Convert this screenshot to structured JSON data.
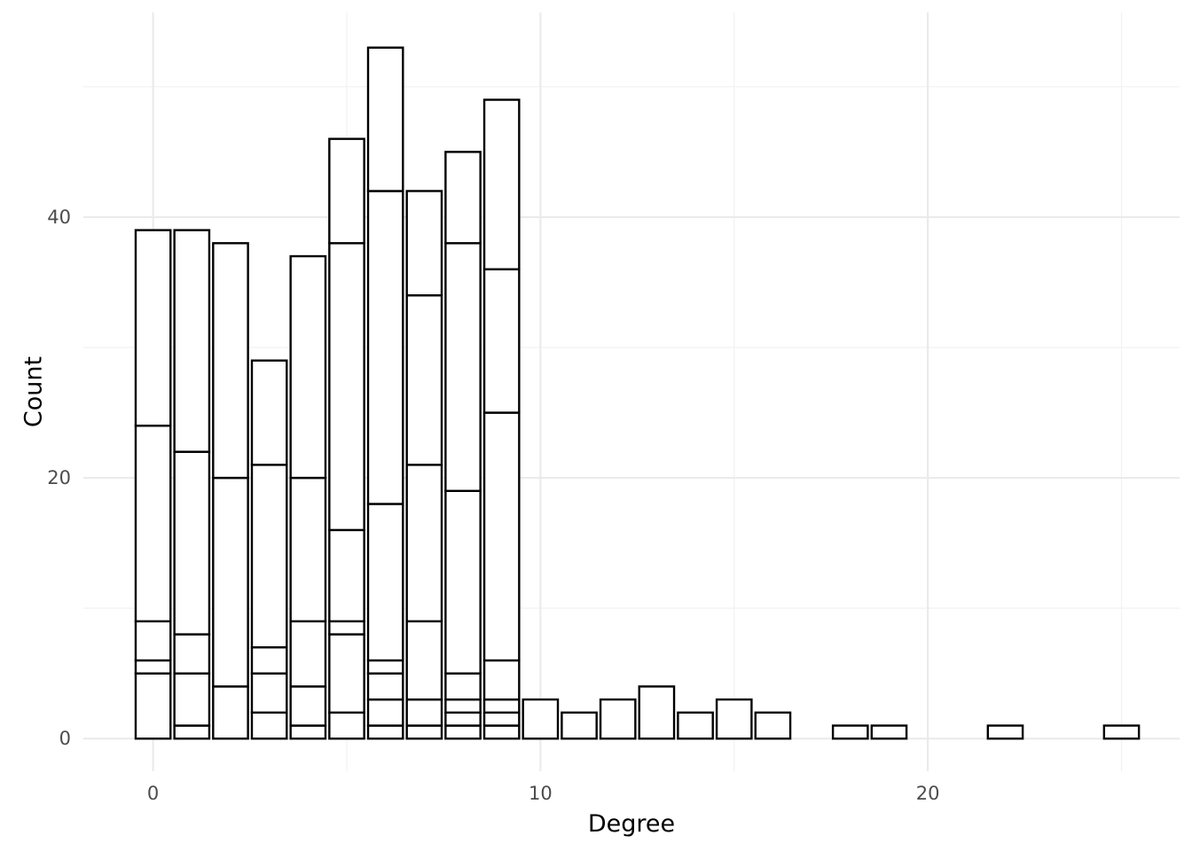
{
  "chart_data": {
    "type": "bar",
    "subtype": "stacked",
    "title": "",
    "xlabel": "Degree",
    "ylabel": "Count",
    "xlim": [
      -1.8,
      26.5
    ],
    "ylim": [
      -2.5,
      55.7
    ],
    "x_ticks": [
      0,
      10,
      20
    ],
    "y_ticks": [
      0,
      20,
      40
    ],
    "x_minor": [
      5,
      15,
      25
    ],
    "y_minor": [
      10,
      30,
      50
    ],
    "grid": true,
    "legend": "none",
    "bars": [
      {
        "x": 0,
        "boundaries": [
          5,
          6,
          9,
          24,
          39
        ]
      },
      {
        "x": 1,
        "boundaries": [
          1,
          5,
          8,
          22,
          39
        ]
      },
      {
        "x": 2,
        "boundaries": [
          4,
          20,
          38
        ]
      },
      {
        "x": 3,
        "boundaries": [
          2,
          5,
          7,
          21,
          29
        ]
      },
      {
        "x": 4,
        "boundaries": [
          1,
          4,
          9,
          20,
          37
        ]
      },
      {
        "x": 5,
        "boundaries": [
          2,
          8,
          9,
          16,
          38,
          46
        ]
      },
      {
        "x": 6,
        "boundaries": [
          1,
          3,
          5,
          6,
          18,
          42,
          53
        ]
      },
      {
        "x": 7,
        "boundaries": [
          1,
          3,
          9,
          21,
          34,
          42
        ]
      },
      {
        "x": 8,
        "boundaries": [
          1,
          2,
          3,
          5,
          19,
          38,
          45
        ]
      },
      {
        "x": 9,
        "boundaries": [
          1,
          2,
          3,
          6,
          25,
          36,
          49
        ]
      },
      {
        "x": 10,
        "boundaries": [
          3
        ]
      },
      {
        "x": 11,
        "boundaries": [
          2
        ]
      },
      {
        "x": 12,
        "boundaries": [
          3
        ]
      },
      {
        "x": 13,
        "boundaries": [
          4
        ]
      },
      {
        "x": 14,
        "boundaries": [
          2
        ]
      },
      {
        "x": 15,
        "boundaries": [
          3
        ]
      },
      {
        "x": 16,
        "boundaries": [
          2
        ]
      },
      {
        "x": 18,
        "boundaries": [
          1
        ]
      },
      {
        "x": 19,
        "boundaries": [
          1
        ]
      },
      {
        "x": 22,
        "boundaries": [
          1
        ]
      },
      {
        "x": 25,
        "boundaries": [
          1
        ]
      }
    ],
    "colors": {
      "bar_fill": "#ffffff",
      "bar_outline": "#000000",
      "grid": "#ebebeb"
    }
  }
}
